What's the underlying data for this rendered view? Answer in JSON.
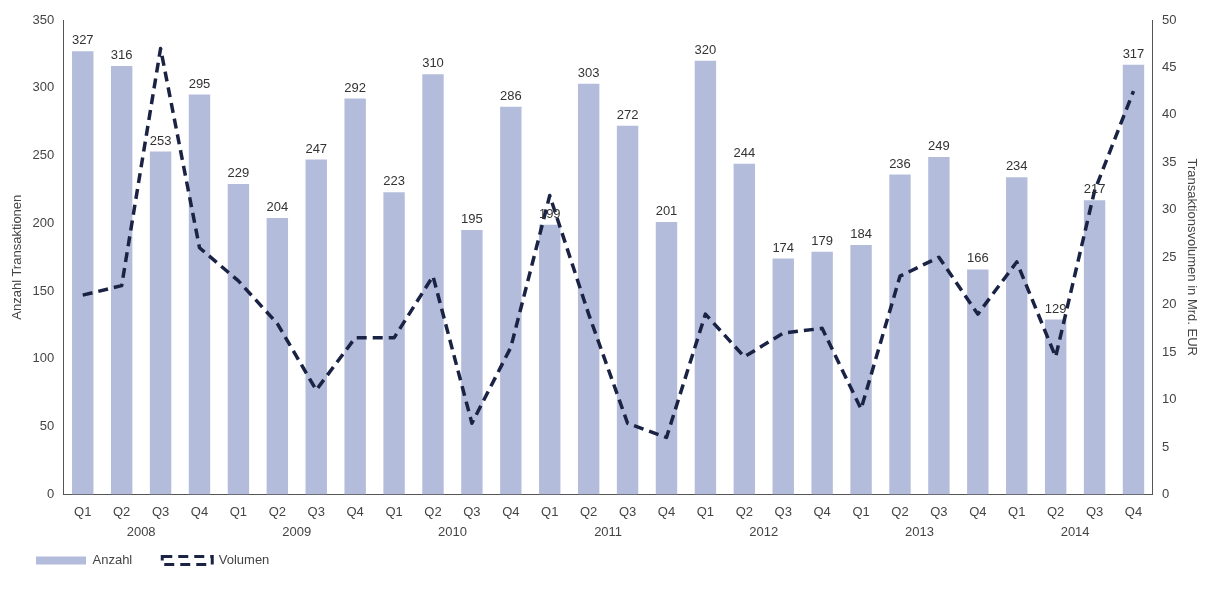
{
  "chart_data": {
    "type": "bar",
    "categories": [
      "Q1",
      "Q2",
      "Q3",
      "Q4",
      "Q1",
      "Q2",
      "Q3",
      "Q4",
      "Q1",
      "Q2",
      "Q3",
      "Q4",
      "Q1",
      "Q2",
      "Q3",
      "Q4",
      "Q1",
      "Q2",
      "Q3",
      "Q4",
      "Q1",
      "Q2",
      "Q3",
      "Q4",
      "Q1",
      "Q2",
      "Q3",
      "Q4"
    ],
    "annotations": [
      "2008",
      "2009",
      "2010",
      "2011",
      "2012",
      "2013",
      "2014"
    ],
    "ylabel": "Anzahl Transaktionen",
    "y2label": "Transaktionsvolumen in Mrd. EUR",
    "ylim": [
      0,
      350
    ],
    "yticks": [
      0,
      50,
      100,
      150,
      200,
      250,
      300,
      350
    ],
    "y2lim": [
      0,
      50
    ],
    "y2ticks": [
      0,
      5,
      10,
      15,
      20,
      25,
      30,
      35,
      40,
      45,
      50
    ],
    "grid": false,
    "legend": "bottom left",
    "marker": "none",
    "series": [
      {
        "name": "Anzahl",
        "color": "#b4bcdb",
        "values": [
          327,
          316,
          253,
          295,
          229,
          204,
          247,
          292,
          223,
          310,
          195,
          286,
          199,
          303,
          272,
          201,
          320,
          244,
          174,
          179,
          184,
          236,
          249,
          166,
          234,
          129,
          217,
          317
        ],
        "value_labels": [
          "327",
          "316",
          "253",
          "295",
          "229",
          "204",
          "247",
          "292",
          "223",
          "310",
          "195",
          "286",
          "199",
          "303",
          "272",
          "201",
          "320",
          "244",
          "174",
          "179",
          "184",
          "236",
          "249",
          "166",
          "234",
          "129",
          "217",
          "317"
        ]
      },
      {
        "name": "Volumen",
        "type": "line",
        "axis": "y2",
        "line_style": "dashed",
        "color": "#1a2344",
        "values": [
          21,
          22,
          47,
          26,
          22.5,
          18,
          11,
          16.5,
          16.5,
          23,
          7.5,
          15.5,
          31.5,
          19,
          7.5,
          6,
          19,
          14.5,
          17,
          17.5,
          9,
          23,
          25,
          19,
          24.5,
          14.5,
          32,
          42.5
        ]
      }
    ]
  }
}
